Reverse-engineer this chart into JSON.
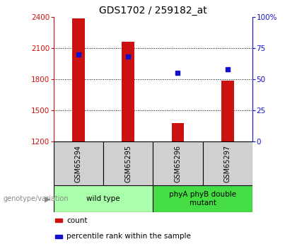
{
  "title": "GDS1702 / 259182_at",
  "samples": [
    "GSM65294",
    "GSM65295",
    "GSM65296",
    "GSM65297"
  ],
  "counts": [
    2390,
    2160,
    1380,
    1790
  ],
  "percentiles": [
    70,
    68,
    55,
    58
  ],
  "ylim_left": [
    1200,
    2400
  ],
  "ylim_right": [
    0,
    100
  ],
  "yticks_left": [
    1200,
    1500,
    1800,
    2100,
    2400
  ],
  "yticks_right": [
    0,
    25,
    50,
    75,
    100
  ],
  "bar_color": "#cc1111",
  "marker_color": "#1111cc",
  "bar_width": 0.25,
  "groups": [
    {
      "label": "wild type",
      "samples": [
        0,
        1
      ],
      "color": "#aaffaa"
    },
    {
      "label": "phyA phyB double\nmutant",
      "samples": [
        2,
        3
      ],
      "color": "#44dd44"
    }
  ],
  "legend_items": [
    {
      "label": "count",
      "color": "#cc1111"
    },
    {
      "label": "percentile rank within the sample",
      "color": "#1111cc"
    }
  ],
  "xlabel_group": "genotype/variation"
}
